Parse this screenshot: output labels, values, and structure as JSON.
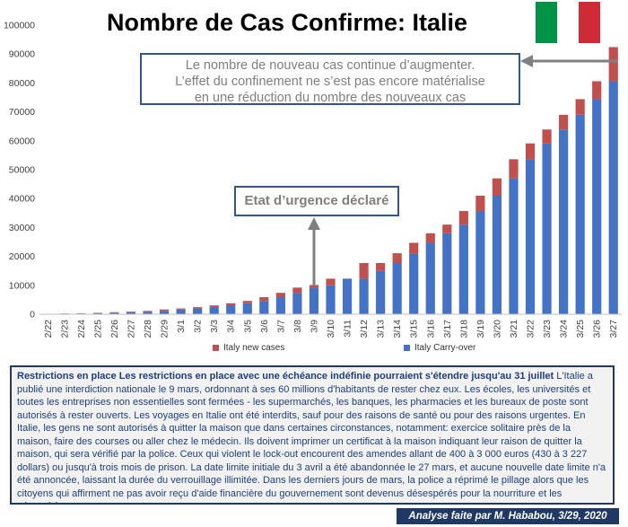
{
  "title": "Nombre de Cas Confirme: Italie",
  "flag": {
    "colors": [
      "#009246",
      "#ffffff",
      "#ce2b37"
    ]
  },
  "callout_top": {
    "line1": "Le nombre de nouveau cas continue d’augmenter.",
    "line2": "L’effet du confinement ne s’est pas encore matérialise",
    "line3": "en une réduction du nombre des nouveaux cas"
  },
  "callout_emergency": {
    "text": "Etat d’urgence déclaré"
  },
  "legend": {
    "new_cases": "Italy new cases",
    "carry_over": "Italy Carry-over"
  },
  "colors": {
    "carry_over": "#4472c4",
    "new_cases": "#c0504d",
    "callout_border": "#2f5597",
    "arrow": "#808080"
  },
  "chart_data": {
    "type": "bar",
    "stacked": true,
    "categories": [
      "2/22",
      "2/23",
      "2/24",
      "2/25",
      "2/26",
      "2/27",
      "2/28",
      "2/29",
      "3/1",
      "3/2",
      "3/3",
      "3/4",
      "3/5",
      "3/6",
      "3/7",
      "3/8",
      "3/9",
      "3/10",
      "3/11",
      "3/12",
      "3/13",
      "3/14",
      "3/15",
      "3/16",
      "3/17",
      "3/18",
      "3/19",
      "3/20",
      "3/21",
      "3/22",
      "3/23",
      "3/24",
      "3/25",
      "3/26",
      "3/27"
    ],
    "series": [
      {
        "name": "Italy Carry-over",
        "values": [
          50,
          150,
          250,
          350,
          500,
          700,
          900,
          1150,
          1650,
          2000,
          2500,
          3100,
          3800,
          4600,
          5900,
          7400,
          9200,
          10000,
          12300,
          12300,
          15000,
          17700,
          21000,
          24700,
          28000,
          31000,
          35700,
          41000,
          47000,
          53600,
          59100,
          63900,
          69000,
          74400,
          80600
        ]
      },
      {
        "name": "Italy new cases",
        "values": [
          80,
          100,
          100,
          150,
          200,
          200,
          250,
          500,
          350,
          450,
          550,
          700,
          800,
          1300,
          1500,
          1800,
          900,
          2300,
          0,
          5400,
          2700,
          3400,
          3700,
          3300,
          3000,
          4700,
          5300,
          6000,
          6600,
          5500,
          4800,
          5100,
          5400,
          6200,
          11800
        ]
      }
    ],
    "ylim": [
      0,
      100000
    ],
    "yticks": [
      0,
      10000,
      20000,
      30000,
      40000,
      50000,
      60000,
      70000,
      80000,
      90000,
      100000
    ],
    "grid": false,
    "legend_position": "bottom"
  },
  "body_text": {
    "heading": "Restrictions en place Les restrictions en place avec une échéance indéfinie pourraient s'étendre jusqu'au 31 juillet",
    "paragraph": " L'Italie a publié une interdiction nationale le 9 mars, ordonnant à ses 60 millions d'habitants de rester chez eux. Les écoles, les universités et toutes les entreprises non essentielles sont fermées - les supermarchés, les banques, les pharmacies et les bureaux de poste sont autorisés à rester ouverts. Les voyages en Italie ont été interdits, sauf pour des raisons de santé ou pour des raisons urgentes. En Italie, les gens ne sont autorisés à quitter la maison que dans certaines circonstances, notamment: exercice solitaire près de la maison, faire des courses ou aller chez le médecin. Ils doivent imprimer un certificat à la maison indiquant leur raison de quitter la maison, qui sera vérifié par la police. Ceux qui violent le lock-out encourent des amendes allant de 400 à 3 000 euros (430 à 3 227 dollars) ou jusqu'à trois mois de prison. La date limite initiale du 3 avril a été abandonnée le 27 mars, et aucune nouvelle date limite n'a été annoncée, laissant la durée du verrouillage illimitée. Dans les derniers jours de mars, la police a réprimé le pillage alors que les citoyens qui affirment ne pas avoir reçu d'aide financière du gouvernement sont devenus désespérés pour la nourriture et les nécessités"
  },
  "footer": {
    "text": "Analyse faite par M. Hababou,  3/29, 2020"
  }
}
